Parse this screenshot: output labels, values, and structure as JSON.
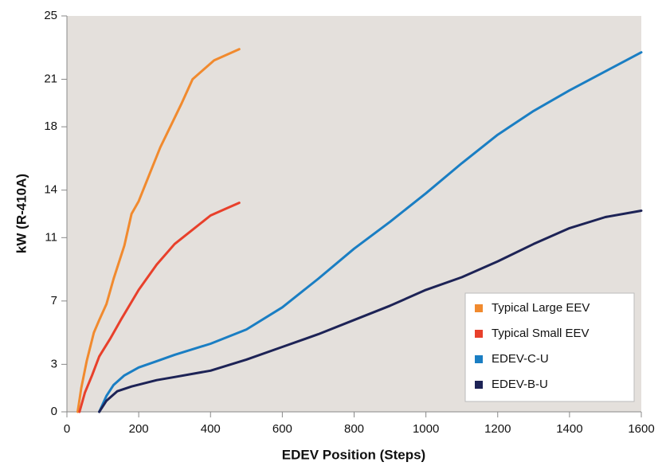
{
  "chart_data": {
    "type": "line",
    "x_label": "EDEV Position (Steps)",
    "y_label": "kW  (R-410A)",
    "xlim": [
      0,
      1600
    ],
    "xticks": [
      0,
      200,
      400,
      600,
      800,
      1000,
      1200,
      1400,
      1600
    ],
    "ylim": [
      0,
      25
    ],
    "yticks": [
      0,
      3,
      7,
      11,
      14,
      18,
      21,
      25
    ],
    "grid": false,
    "legend": "lower right",
    "series": [
      {
        "name": "Typical Large EEV",
        "color": "#f18a2e",
        "x": [
          30,
          40,
          55,
          75,
          90,
          110,
          130,
          160,
          180,
          200,
          230,
          260,
          290,
          320,
          350,
          380,
          410,
          450,
          480
        ],
        "values": [
          0,
          1.5,
          3.2,
          5,
          5.8,
          6.8,
          8.4,
          10.5,
          12.5,
          13.3,
          15,
          16.7,
          18.1,
          19.5,
          21,
          21.6,
          22.2,
          22.6,
          22.9
        ]
      },
      {
        "name": "Typical Small EEV",
        "color": "#e8402b",
        "x": [
          35,
          50,
          70,
          90,
          120,
          150,
          200,
          250,
          300,
          350,
          400,
          440,
          480
        ],
        "values": [
          0,
          1.2,
          2.3,
          3.5,
          4.6,
          5.8,
          7.7,
          9.3,
          10.6,
          11.5,
          12.4,
          12.8,
          13.2
        ]
      },
      {
        "name": "EDEV-C-U",
        "color": "#1a7ec3",
        "x": [
          90,
          110,
          130,
          160,
          200,
          250,
          300,
          400,
          500,
          600,
          700,
          800,
          900,
          1000,
          1100,
          1200,
          1300,
          1400,
          1500,
          1600
        ],
        "values": [
          0,
          1,
          1.7,
          2.3,
          2.8,
          3.2,
          3.6,
          4.3,
          5.2,
          6.6,
          8.4,
          10.3,
          12,
          13.8,
          15.7,
          17.5,
          19,
          20.3,
          21.5,
          22.7
        ]
      },
      {
        "name": "EDEV-B-U",
        "color": "#1d2356",
        "x": [
          90,
          110,
          140,
          180,
          250,
          300,
          400,
          500,
          600,
          700,
          800,
          900,
          1000,
          1100,
          1200,
          1300,
          1400,
          1500,
          1600
        ],
        "values": [
          0,
          0.7,
          1.3,
          1.6,
          2,
          2.2,
          2.6,
          3.3,
          4.1,
          4.9,
          5.8,
          6.7,
          7.7,
          8.5,
          9.5,
          10.6,
          11.6,
          12.3,
          12.7
        ]
      }
    ]
  }
}
